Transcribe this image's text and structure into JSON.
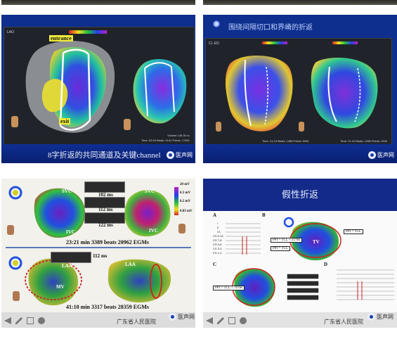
{
  "panel_top_left": {
    "screen": {
      "top_left": "LAO",
      "stats": "Time: 02:53  Beats: 6141  Points: 17691",
      "stats2": "Volume 146.36 cc"
    },
    "tags": {
      "entrance": "entrance",
      "exit": "exit"
    },
    "caption": "8字折返的共同通道及关键channel",
    "watermark": "医声网"
  },
  "panel_top_right": {
    "title": "围绕间隔切口和界嵴的折返",
    "screen": {
      "top_left": "CL EO",
      "stats_left": "Time: 21:19  Beats: 1388  Points: 5951",
      "stats_right": "Time: 21:19  Beats: 1288  Points: 2300"
    },
    "caption": "",
    "watermark": "医声网"
  },
  "panel_bottom_left": {
    "labels": {
      "svc": "SVC",
      "svc2": "SVC",
      "ivc": "IVC",
      "ivc2": "IVC",
      "laa": "LAA",
      "laa2": "LAA",
      "mv": "MV"
    },
    "scale": {
      "top": "20 mV",
      "mid": "0.3 mV",
      "mid2": "0.2 mV",
      "bottom": "0.03 mV"
    },
    "ms_values": [
      "102 ms",
      "112 ms",
      "122 ms",
      "112 ms"
    ],
    "stats_top": "23:21 min  3389 beats  20962 EGMs",
    "stats_bottom": "41:10 min  3317 beats  28359 EGMs",
    "hospital": "广东省人民医院",
    "watermark": "医声网"
  },
  "panel_bottom_right": {
    "title": "假性折返",
    "letters": [
      "A",
      "B",
      "C",
      "D"
    ],
    "boxes": {
      "ppi_tcl_1": "PPI = TCL + 22 ms",
      "ppi_tcl_2": "PPI = TCL",
      "ppi_tcl_3": "PPI = TCL",
      "ppi_tcl_4": "PPI = TCL + 70 ms",
      "tv": "TV"
    },
    "leads": [
      "I",
      "II",
      "V1",
      "CS 9-10",
      "CS 7-8",
      "CS 5-6",
      "CS 3-4",
      "CS 1-2"
    ],
    "hospital": "广东省人民医院",
    "watermark": "医声网"
  },
  "colors": {
    "slide_blue": "#0f2f8e",
    "accent_red": "#cc2020",
    "tag_yellow": "#f2ee3a"
  }
}
